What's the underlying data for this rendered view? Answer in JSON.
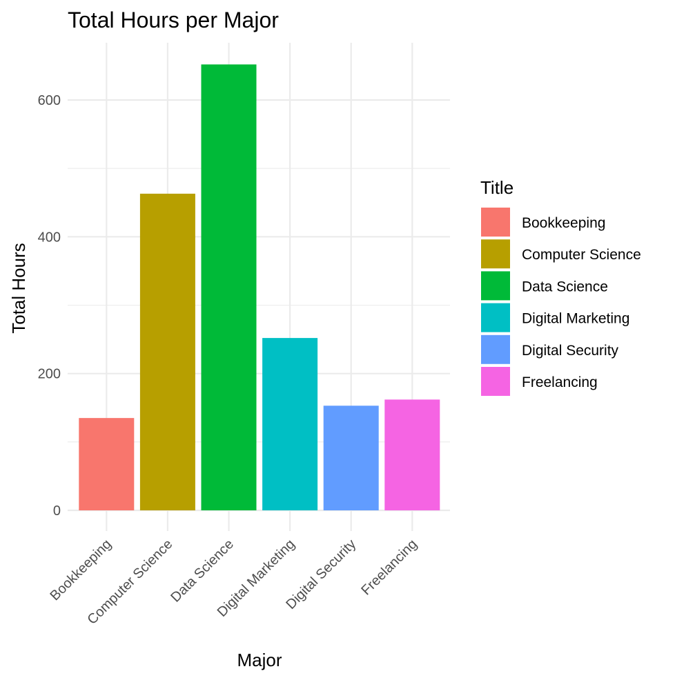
{
  "chart_data": {
    "type": "bar",
    "title": "Total Hours per Major",
    "xlabel": "Major",
    "ylabel": "Total Hours",
    "categories": [
      "Bookkeeping",
      "Computer Science",
      "Data Science",
      "Digital Marketing",
      "Digital Security",
      "Freelancing"
    ],
    "values": [
      135,
      463,
      652,
      252,
      153,
      162
    ],
    "colors": [
      "#F8766D",
      "#B79F00",
      "#00BA38",
      "#00BFC4",
      "#619CFF",
      "#F564E3"
    ],
    "ylim": [
      0,
      690
    ],
    "yticks": [
      0,
      200,
      400,
      600
    ],
    "yticks_minor": [
      100,
      300,
      500
    ],
    "grid": true,
    "legend": {
      "title": "Title",
      "position": "right",
      "entries": [
        "Bookkeeping",
        "Computer Science",
        "Data Science",
        "Digital Marketing",
        "Digital Security",
        "Freelancing"
      ]
    }
  }
}
